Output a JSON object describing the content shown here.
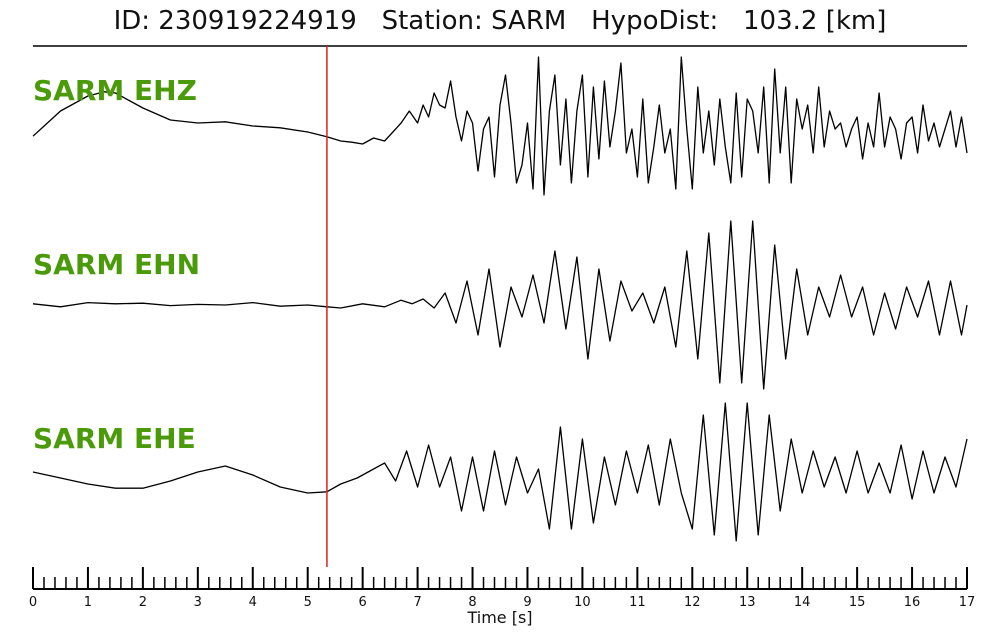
{
  "chart_data": {
    "type": "line",
    "title": "ID: 230919224919   Station: SARM   HypoDist:   103.2 [km]",
    "xlabel": "Time [s]",
    "xlim": [
      0,
      17
    ],
    "x_ticks": [
      "0",
      "1",
      "2",
      "3",
      "4",
      "5",
      "6",
      "7",
      "8",
      "9",
      "10",
      "11",
      "12",
      "13",
      "14",
      "15",
      "16",
      "17"
    ],
    "pick_time_s": 5.35,
    "colors": {
      "label": "#4a9a0a",
      "pick": "#e02020",
      "trace": "#000000",
      "axis": "#000000"
    },
    "series": [
      {
        "name": "SARM EHZ",
        "x": [
          0,
          0.5,
          1.0,
          1.3,
          1.5,
          1.8,
          2.0,
          2.5,
          3.0,
          3.5,
          4.0,
          4.5,
          5.0,
          5.35,
          5.6,
          5.8,
          6.0,
          6.2,
          6.4,
          6.55,
          6.7,
          6.85,
          7.0,
          7.1,
          7.2,
          7.3,
          7.4,
          7.5,
          7.6,
          7.7,
          7.8,
          7.9,
          8.0,
          8.1,
          8.2,
          8.3,
          8.4,
          8.5,
          8.6,
          8.7,
          8.8,
          8.9,
          9.0,
          9.1,
          9.2,
          9.3,
          9.4,
          9.5,
          9.6,
          9.7,
          9.8,
          9.9,
          10.0,
          10.1,
          10.2,
          10.3,
          10.4,
          10.5,
          10.6,
          10.7,
          10.8,
          10.9,
          11.0,
          11.1,
          11.2,
          11.3,
          11.4,
          11.5,
          11.6,
          11.7,
          11.8,
          11.9,
          12.0,
          12.1,
          12.2,
          12.3,
          12.4,
          12.5,
          12.6,
          12.7,
          12.8,
          12.9,
          13.0,
          13.1,
          13.2,
          13.3,
          13.4,
          13.5,
          13.6,
          13.7,
          13.8,
          13.9,
          14.0,
          14.1,
          14.2,
          14.3,
          14.4,
          14.5,
          14.6,
          14.7,
          14.8,
          14.9,
          15.0,
          15.1,
          15.2,
          15.3,
          15.4,
          15.5,
          15.6,
          15.7,
          15.8,
          15.9,
          16.0,
          16.1,
          16.2,
          16.3,
          16.4,
          16.5,
          16.6,
          16.7,
          16.8,
          16.9,
          17.0
        ],
        "values": [
          -0.02,
          0.4,
          0.65,
          0.72,
          0.7,
          0.55,
          0.45,
          0.25,
          0.2,
          0.22,
          0.15,
          0.12,
          0.05,
          -0.03,
          -0.1,
          -0.12,
          -0.15,
          -0.05,
          -0.1,
          0.05,
          0.2,
          0.4,
          0.2,
          0.5,
          0.3,
          0.7,
          0.5,
          0.45,
          0.9,
          0.3,
          -0.1,
          0.4,
          0.2,
          -0.6,
          0.1,
          0.3,
          -0.7,
          0.5,
          1.0,
          0.2,
          -0.8,
          -0.5,
          0.2,
          -0.9,
          1.3,
          -1.0,
          0.4,
          1.0,
          -0.5,
          0.6,
          -0.8,
          0.4,
          1.0,
          -0.7,
          0.8,
          -0.4,
          0.9,
          -0.2,
          0.4,
          1.2,
          -0.3,
          0.1,
          -0.7,
          0.6,
          -0.8,
          -0.2,
          0.5,
          -0.3,
          0.1,
          -0.9,
          1.3,
          0.1,
          -0.9,
          0.8,
          -0.3,
          0.4,
          -0.5,
          0.6,
          -0.2,
          -0.8,
          0.7,
          -0.7,
          0.6,
          0.4,
          -0.3,
          0.8,
          -0.8,
          1.1,
          -0.3,
          0.8,
          -0.8,
          0.6,
          0.1,
          0.5,
          -0.3,
          0.8,
          -0.2,
          0.4,
          0.1,
          0.2,
          -0.2,
          0.1,
          0.3,
          -0.4,
          0.2,
          -0.2,
          0.7,
          -0.2,
          0.3,
          0.1,
          -0.4,
          0.2,
          0.3,
          -0.3,
          0.5,
          -0.1,
          0.2,
          -0.2,
          0.1,
          0.4,
          -0.2,
          0.3,
          -0.3
        ]
      },
      {
        "name": "SARM EHN",
        "x": [
          0,
          0.5,
          1.0,
          1.5,
          2.0,
          2.5,
          3.0,
          3.5,
          4.0,
          4.5,
          5.0,
          5.35,
          5.6,
          6.0,
          6.4,
          6.7,
          6.9,
          7.1,
          7.3,
          7.5,
          7.7,
          7.9,
          8.1,
          8.3,
          8.5,
          8.7,
          8.9,
          9.1,
          9.3,
          9.5,
          9.7,
          9.9,
          10.1,
          10.3,
          10.5,
          10.7,
          10.9,
          11.1,
          11.3,
          11.5,
          11.7,
          11.9,
          12.1,
          12.3,
          12.5,
          12.7,
          12.9,
          13.1,
          13.3,
          13.5,
          13.7,
          13.9,
          14.1,
          14.3,
          14.5,
          14.7,
          14.9,
          15.1,
          15.3,
          15.5,
          15.7,
          15.9,
          16.1,
          16.3,
          16.5,
          16.7,
          16.9,
          17.0
        ],
        "values": [
          0.02,
          -0.03,
          0.04,
          0.02,
          0.03,
          -0.01,
          0.01,
          0.0,
          0.04,
          -0.02,
          0.0,
          -0.03,
          -0.05,
          0.02,
          -0.03,
          0.08,
          0.02,
          0.1,
          -0.05,
          0.2,
          -0.3,
          0.4,
          -0.5,
          0.6,
          -0.7,
          0.3,
          -0.2,
          0.5,
          -0.3,
          0.9,
          -0.4,
          0.8,
          -0.9,
          0.6,
          -0.6,
          0.4,
          -0.1,
          0.2,
          -0.3,
          0.3,
          -0.7,
          0.9,
          -0.9,
          1.2,
          -1.3,
          1.4,
          -1.3,
          1.4,
          -1.4,
          1.0,
          -0.9,
          0.6,
          -0.5,
          0.3,
          -0.2,
          0.5,
          -0.2,
          0.3,
          -0.5,
          0.2,
          -0.4,
          0.3,
          -0.2,
          0.4,
          -0.5,
          0.4,
          -0.5,
          0.0
        ]
      },
      {
        "name": "SARM EHE",
        "x": [
          0,
          0.5,
          1.0,
          1.5,
          2.0,
          2.5,
          3.0,
          3.5,
          4.0,
          4.5,
          5.0,
          5.35,
          5.6,
          5.9,
          6.2,
          6.4,
          6.6,
          6.8,
          7.0,
          7.2,
          7.4,
          7.6,
          7.8,
          8.0,
          8.2,
          8.4,
          8.6,
          8.8,
          9.0,
          9.2,
          9.4,
          9.6,
          9.8,
          10.0,
          10.2,
          10.4,
          10.6,
          10.8,
          11.0,
          11.2,
          11.4,
          11.6,
          11.8,
          12.0,
          12.2,
          12.4,
          12.6,
          12.8,
          13.0,
          13.2,
          13.4,
          13.6,
          13.8,
          14.0,
          14.2,
          14.4,
          14.6,
          14.8,
          15.0,
          15.2,
          15.4,
          15.6,
          15.8,
          16.0,
          16.2,
          16.4,
          16.6,
          16.8,
          17.0
        ],
        "values": [
          0.05,
          -0.05,
          -0.15,
          -0.22,
          -0.22,
          -0.1,
          0.05,
          0.15,
          0.0,
          -0.2,
          -0.3,
          -0.28,
          -0.15,
          -0.05,
          0.1,
          0.2,
          -0.1,
          0.4,
          -0.2,
          0.5,
          -0.2,
          0.3,
          -0.6,
          0.3,
          -0.6,
          0.4,
          -0.5,
          0.3,
          -0.3,
          0.1,
          -0.9,
          0.8,
          -0.9,
          0.6,
          -0.8,
          0.3,
          -0.5,
          0.4,
          -0.3,
          0.5,
          -0.5,
          0.6,
          -0.3,
          -0.9,
          1.0,
          -1.0,
          1.2,
          -1.1,
          1.2,
          -1.0,
          1.0,
          -0.6,
          0.6,
          -0.3,
          0.4,
          -0.2,
          0.3,
          -0.3,
          0.4,
          -0.3,
          0.2,
          -0.3,
          0.5,
          -0.4,
          0.4,
          -0.3,
          0.3,
          -0.2,
          0.6
        ]
      }
    ]
  }
}
